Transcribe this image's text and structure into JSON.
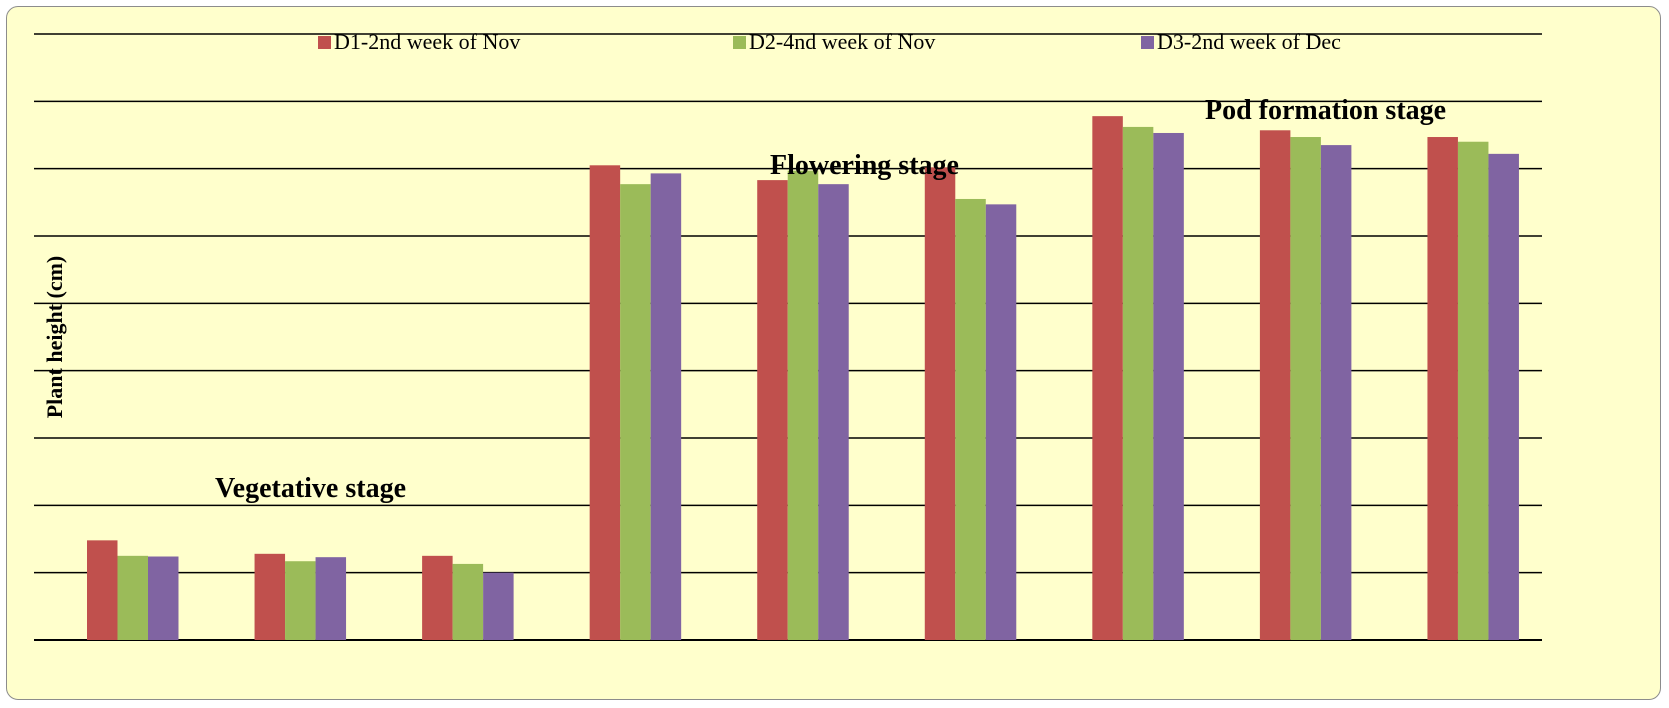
{
  "chart_data": {
    "type": "bar",
    "title": "",
    "xlabel": "",
    "ylabel": "Plant height (cm)",
    "ylim": [
      0,
      9
    ],
    "grid": true,
    "legend_position": "top",
    "categories": [
      "",
      "",
      "",
      "",
      "",
      "",
      "",
      "",
      ""
    ],
    "series": [
      {
        "name": "D1-2nd week of Nov",
        "color": "#c0504d",
        "values": [
          1.48,
          1.28,
          1.25,
          7.05,
          6.83,
          7.02,
          7.78,
          7.57,
          7.47
        ]
      },
      {
        "name": "D2-4nd week of Nov",
        "color": "#9bbb59",
        "values": [
          1.25,
          1.17,
          1.13,
          6.77,
          6.97,
          6.55,
          7.62,
          7.47,
          7.4
        ]
      },
      {
        "name": "D3-2nd week of Dec",
        "color": "#8064a2",
        "values": [
          1.24,
          1.23,
          1.0,
          6.93,
          6.77,
          6.47,
          7.53,
          7.35,
          7.22
        ]
      }
    ],
    "annotations": [
      "Vegetative stage",
      "Flowering stage",
      "Pod formation stage"
    ]
  }
}
